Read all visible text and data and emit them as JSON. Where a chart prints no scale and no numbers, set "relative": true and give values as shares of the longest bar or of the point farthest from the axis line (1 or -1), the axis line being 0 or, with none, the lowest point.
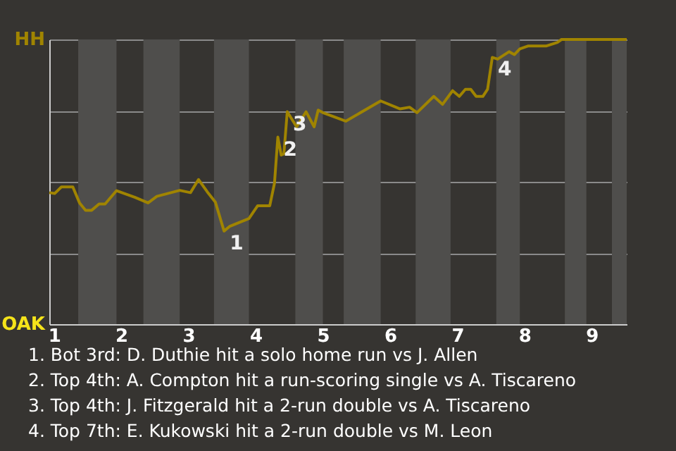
{
  "chart_data": {
    "type": "line",
    "x": [
      0.93,
      1.01,
      1.11,
      1.28,
      1.38,
      1.47,
      1.56,
      1.67,
      1.76,
      1.93,
      2.2,
      2.4,
      2.53,
      2.87,
      3.03,
      3.15,
      3.28,
      3.4,
      3.53,
      3.61,
      3.9,
      4.03,
      4.21,
      4.28,
      4.33,
      4.38,
      4.42,
      4.47,
      4.61,
      4.75,
      4.87,
      4.93,
      5.0,
      5.34,
      5.86,
      6.15,
      6.29,
      6.4,
      6.65,
      6.78,
      6.93,
      7.03,
      7.12,
      7.2,
      7.28,
      7.38,
      7.45,
      7.52,
      7.6,
      7.77,
      7.85,
      7.93,
      8.05,
      8.32,
      8.49,
      8.55,
      9.52
    ],
    "series": [
      {
        "color": "#a08400",
        "values": [
          0.462,
          0.459,
          0.482,
          0.482,
          0.426,
          0.4,
          0.4,
          0.422,
          0.422,
          0.469,
          0.446,
          0.426,
          0.449,
          0.47,
          0.462,
          0.508,
          0.465,
          0.429,
          0.327,
          0.343,
          0.371,
          0.416,
          0.416,
          0.495,
          0.657,
          0.594,
          0.598,
          0.746,
          0.693,
          0.746,
          0.693,
          0.752,
          0.743,
          0.713,
          0.784,
          0.756,
          0.762,
          0.743,
          0.8,
          0.772,
          0.82,
          0.8,
          0.825,
          0.825,
          0.8,
          0.8,
          0.825,
          0.937,
          0.931,
          0.957,
          0.947,
          0.967,
          0.977,
          0.977,
          0.99,
          1,
          1
        ]
      }
    ],
    "relative": true,
    "xlim": [
      0.93,
      9.52
    ],
    "xticks": [
      1,
      2,
      3,
      4,
      5,
      6,
      7,
      8,
      9
    ],
    "grid": "y",
    "marker": "none",
    "line_style": "solid",
    "bands": [
      {
        "axis": "x",
        "from": 1.36,
        "to": 1.93,
        "color": "#4f4e4c"
      },
      {
        "axis": "x",
        "from": 2.33,
        "to": 2.87,
        "color": "#4f4e4c"
      },
      {
        "axis": "x",
        "from": 3.38,
        "to": 3.9,
        "color": "#4f4e4c"
      },
      {
        "axis": "x",
        "from": 4.59,
        "to": 5.0,
        "color": "#4f4e4c"
      },
      {
        "axis": "x",
        "from": 5.31,
        "to": 5.86,
        "color": "#4f4e4c"
      },
      {
        "axis": "x",
        "from": 6.38,
        "to": 6.9,
        "color": "#4f4e4c"
      },
      {
        "axis": "x",
        "from": 7.58,
        "to": 7.93,
        "color": "#4f4e4c"
      },
      {
        "axis": "x",
        "from": 8.6,
        "to": 8.92,
        "color": "#4f4e4c"
      },
      {
        "axis": "x",
        "from": 9.3,
        "to": 9.52,
        "color": "#4f4e4c"
      }
    ],
    "annotations": [
      "HH",
      "OAK",
      {
        "text": "1",
        "x": 3.53,
        "y": 0.327
      },
      {
        "text": "2",
        "x": 4.33,
        "y": 0.657
      },
      {
        "text": "3",
        "x": 4.47,
        "y": 0.746
      },
      {
        "text": "4",
        "x": 7.52,
        "y": 0.937
      },
      "1. Bot 3rd: D. Duthie hit a solo home run vs J. Allen",
      "2. Top 4th: A. Compton hit a run-scoring single vs A. Tiscareno",
      "3. Top 4th: J. Fitzgerald hit a 2-run double vs A. Tiscareno",
      "4. Top 7th: E. Kukowski hit a 2-run double vs M. Leon"
    ]
  }
}
